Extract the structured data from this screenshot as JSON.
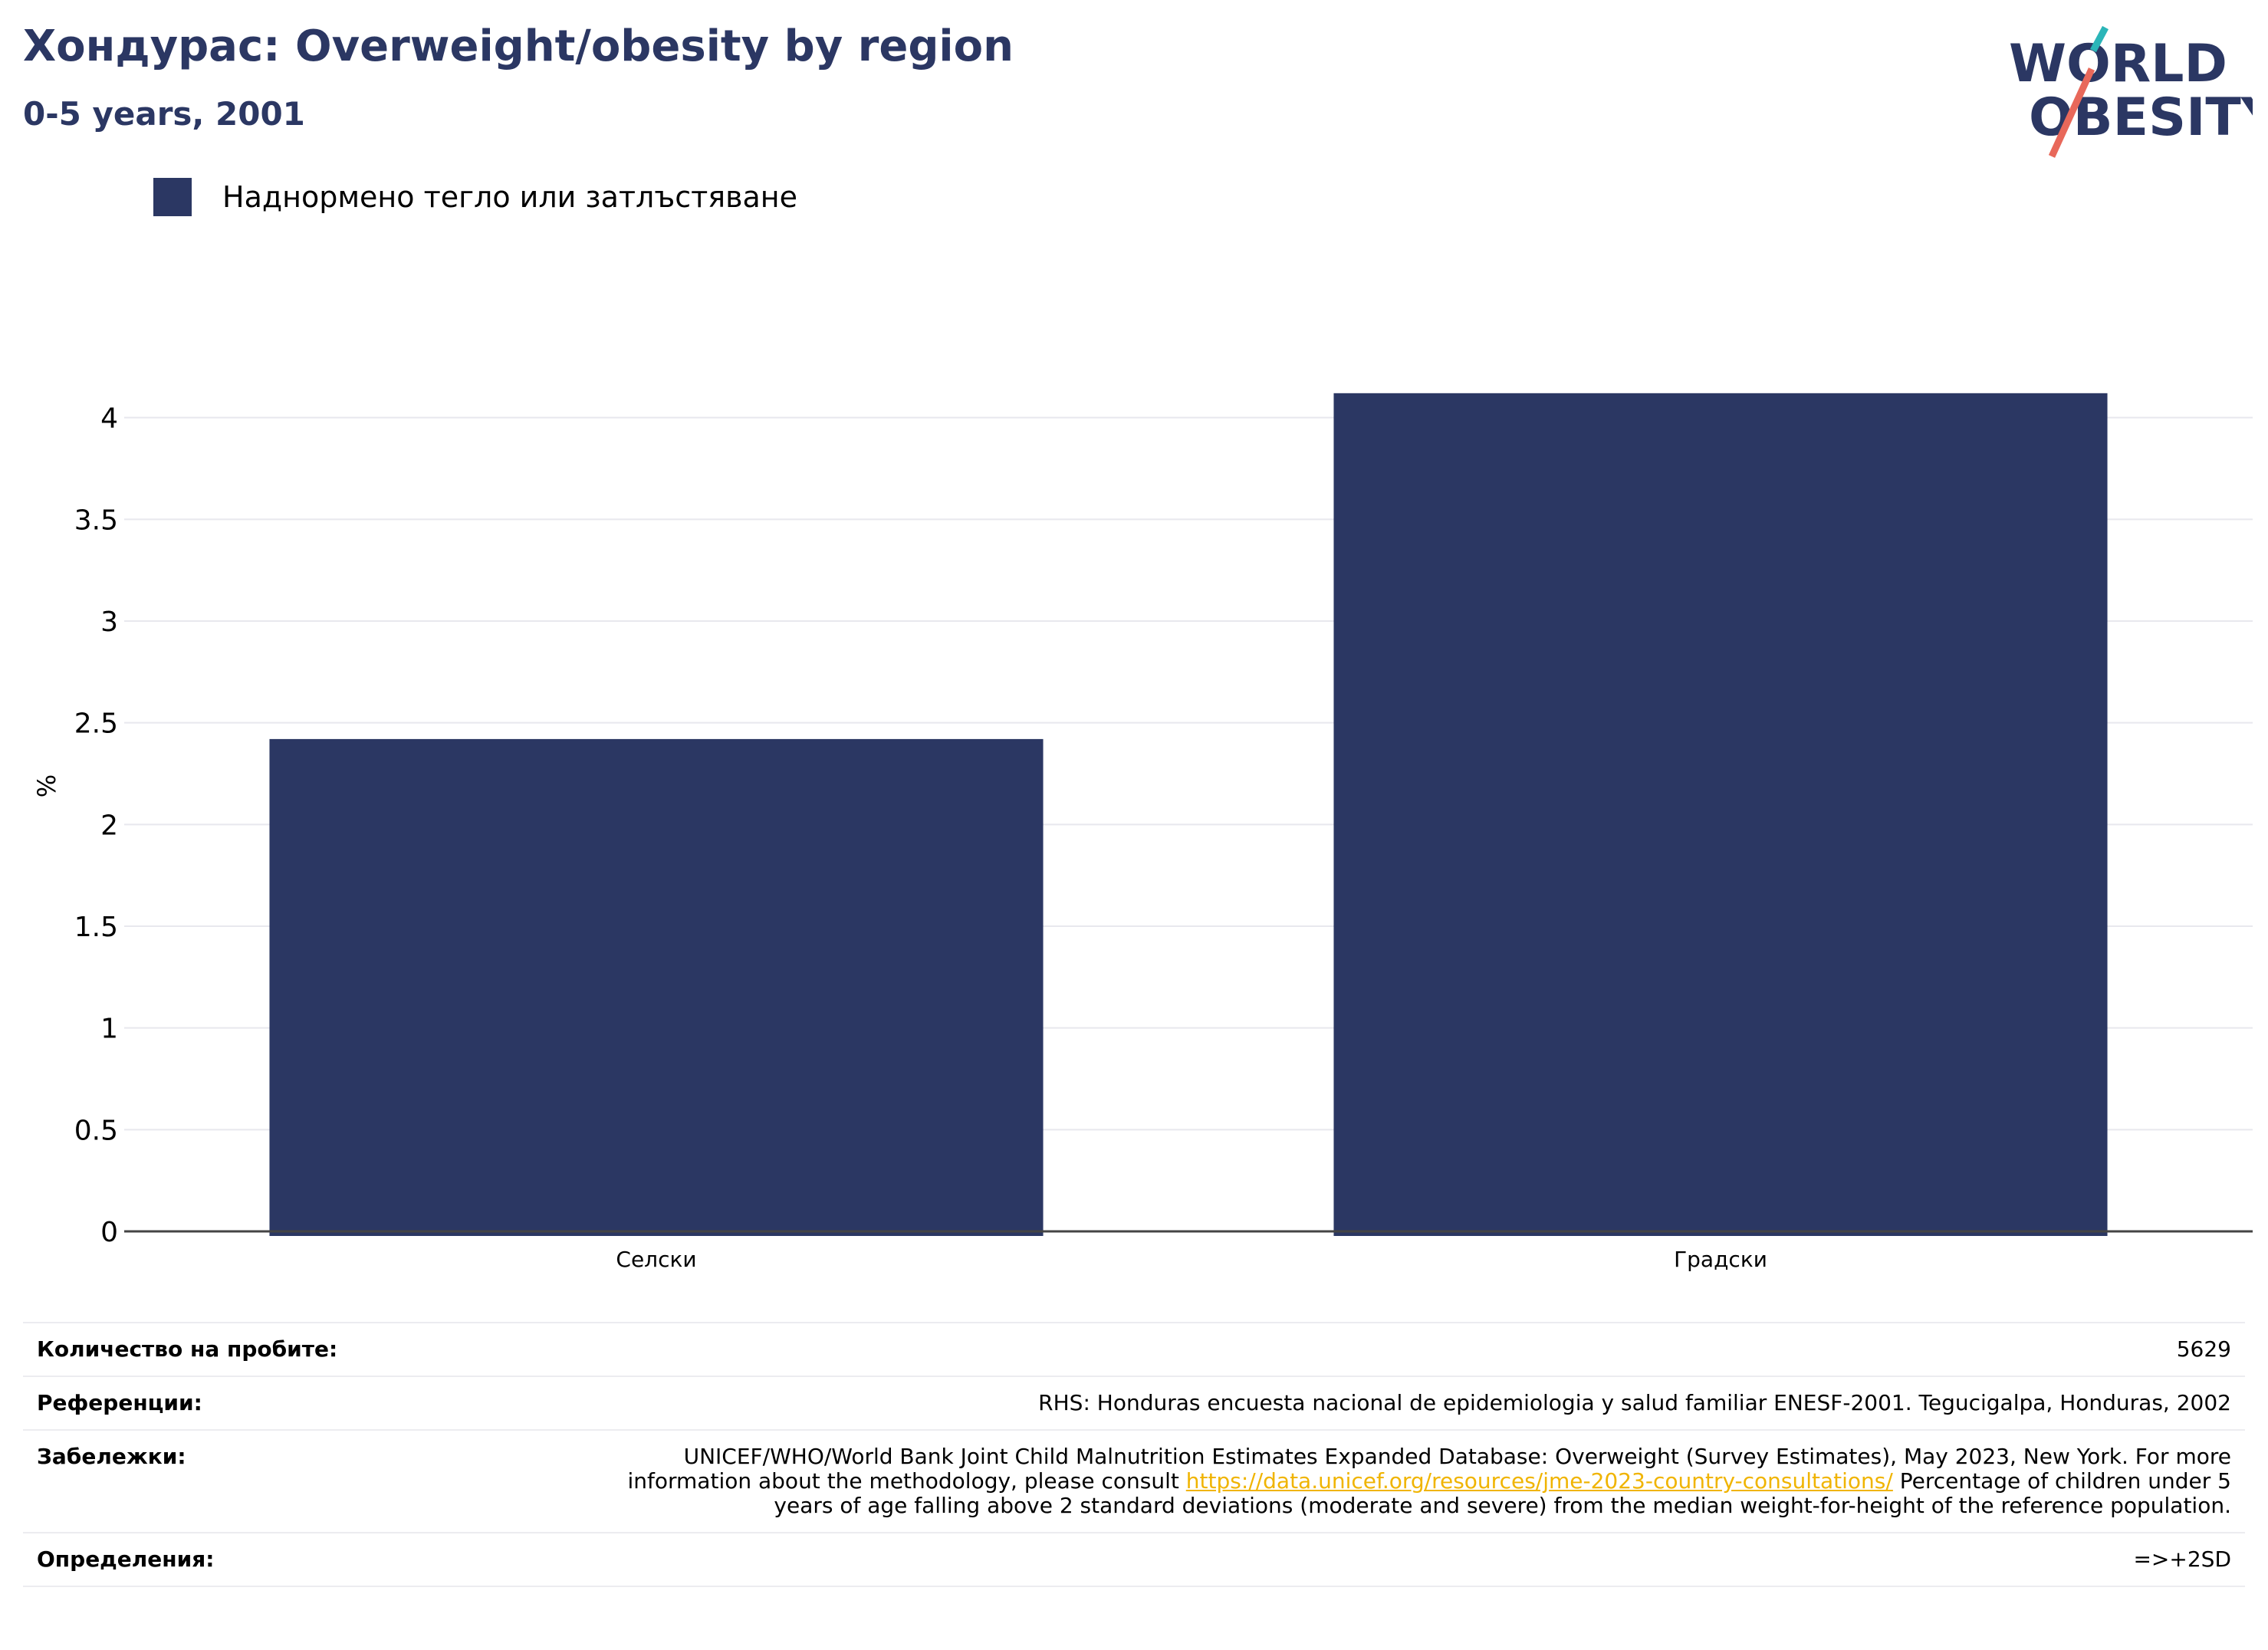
{
  "title": "Хондурас: Overweight/obesity by region",
  "subtitle": "0-5 years, 2001",
  "logo": {
    "line1": "WORLD",
    "line2": "OBESITY",
    "colors": {
      "navy": "#2b3763",
      "teal": "#2bb5b8",
      "coral": "#e8685a"
    }
  },
  "legend": {
    "label": "Наднормено тегло или затлъстяване",
    "color": "#2b3763"
  },
  "chart_data": {
    "type": "bar",
    "categories": [
      "Селски",
      "Градски"
    ],
    "series": [
      {
        "name": "Наднормено тегло или затлъстяване",
        "values": [
          2.42,
          4.12
        ]
      }
    ],
    "ylabel": "%",
    "xlabel": "",
    "ylim": [
      0,
      4.5
    ],
    "yticks": [
      0,
      0.5,
      1,
      1.5,
      2,
      2.5,
      3,
      3.5,
      4
    ],
    "ytick_labels": [
      "0",
      "0.5",
      "1",
      "1.5",
      "2",
      "2.5",
      "3",
      "3.5",
      "4"
    ],
    "grid": true,
    "legend_position": "top-left",
    "bar_color": "#2b3763"
  },
  "footer": {
    "sample_label": "Количество на пробите:",
    "sample_value": "5629",
    "references_label": "Референции:",
    "references_value": "RHS: Honduras encuesta nacional de epidemiologia y salud familiar ENESF-2001. Tegucigalpa, Honduras, 2002",
    "notes_label": "Забележки:",
    "notes_before": "UNICEF/WHO/World Bank Joint Child Malnutrition Estimates Expanded Database: Overweight (Survey Estimates), May 2023, New York. For more information about the methodology, please consult ",
    "notes_link": "https://data.unicef.org/resources/jme-2023-country-consultations/",
    "notes_after": " Percentage of children under 5 years of age falling above 2 standard deviations (moderate and severe) from the median weight-for-height of the reference population.",
    "definitions_label": "Определения:",
    "definitions_value": "=>+2SD"
  }
}
